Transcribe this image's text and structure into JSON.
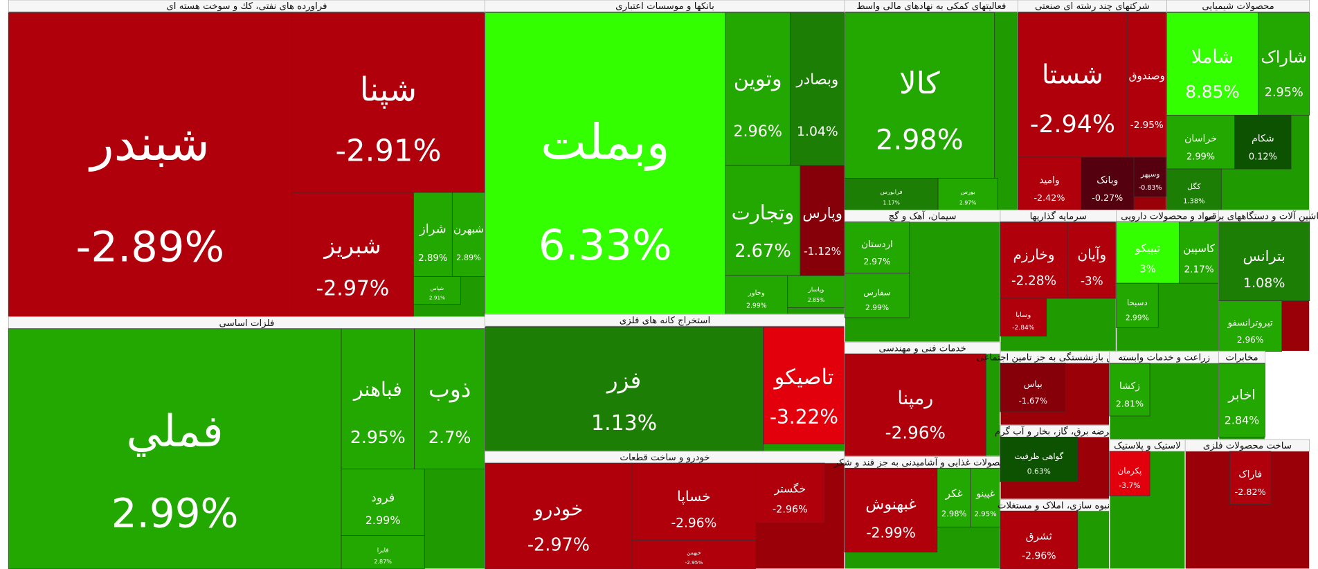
{
  "chart_data": {
    "type": "treemap",
    "groups": [
      {
        "name": "فراورده های نفتی، كك و سوخت هسته ای",
        "labels": [
          "شبندر",
          "شپنا",
          "شبریز",
          "شراز",
          "شبهرن",
          "شپاس"
        ],
        "values": [
          -2.89,
          -2.91,
          -2.97,
          2.89,
          2.89,
          2.91
        ],
        "value_labels": [
          "-2.89%",
          "-2.91%",
          "-2.97%",
          "2.89%",
          "2.89%",
          "2.91%"
        ]
      },
      {
        "name": "بانکها و موسسات اعتباری",
        "labels": [
          "وبملت",
          "وتوين",
          "وبصادر",
          "وتجارت",
          "وپارس",
          "وخاور",
          "وپاسار"
        ],
        "values": [
          6.33,
          2.96,
          1.04,
          2.67,
          -1.12,
          2.99,
          2.85
        ],
        "value_labels": [
          "6.33%",
          "2.96%",
          "1.04%",
          "2.67%",
          "-1.12%",
          "2.99%",
          "2.85%"
        ]
      },
      {
        "name": "فعالیتهای کمکی به نهادهای مالی واسط",
        "labels": [
          "کالا",
          "فرابورس",
          "بورس"
        ],
        "values": [
          2.98,
          1.17,
          2.97
        ],
        "value_labels": [
          "2.98%",
          "1.17%",
          "2.97%"
        ]
      },
      {
        "name": "شرکتهای چند رشته ای صنعتی",
        "labels": [
          "شستا",
          "وصندوق",
          "وامید",
          "وبانک",
          "وسپهر"
        ],
        "values": [
          -2.94,
          -2.95,
          -2.42,
          -0.27,
          -0.83
        ],
        "value_labels": [
          "-2.94%",
          "-2.95%",
          "-2.42%",
          "-0.27%",
          "-0.83%"
        ]
      },
      {
        "name": "محصولات شیمیایی",
        "labels": [
          "شاملا",
          "شاراک",
          "خراسان",
          "شکام",
          "کگل"
        ],
        "values": [
          8.85,
          2.95,
          2.99,
          0.12,
          1.38
        ],
        "value_labels": [
          "8.85%",
          "2.95%",
          "2.99%",
          "0.12%",
          "1.38%"
        ]
      },
      {
        "name": "فلزات اساسی",
        "labels": [
          "فملي",
          "فباهنر",
          "ذوب",
          "فرود",
          "فایرا"
        ],
        "values": [
          2.99,
          2.95,
          2.7,
          2.99,
          2.87
        ],
        "value_labels": [
          "2.99%",
          "2.95%",
          "2.7%",
          "2.99%",
          "2.87%"
        ]
      },
      {
        "name": "استخراج کانه های فلزی",
        "labels": [
          "فزر",
          "تاصیکو"
        ],
        "values": [
          1.13,
          -3.22
        ],
        "value_labels": [
          "1.13%",
          "-3.22%"
        ]
      },
      {
        "name": "خودرو و ساخت قطعات",
        "labels": [
          "خودرو",
          "خساپا",
          "خگستر",
          "خبهمن"
        ],
        "values": [
          -2.97,
          -2.96,
          -2.96,
          -2.95
        ],
        "value_labels": [
          "-2.97%",
          "-2.96%",
          "-2.96%",
          "-2.95%"
        ]
      },
      {
        "name": "سیمان، آهک و گچ",
        "labels": [
          "اردستان",
          "سفارس"
        ],
        "values": [
          2.97,
          2.99
        ],
        "value_labels": [
          "2.97%",
          "2.99%"
        ]
      },
      {
        "name": "سرمایه گذاریها",
        "labels": [
          "وخارزم",
          "وآیان",
          "وسایا"
        ],
        "values": [
          -2.28,
          -3,
          -2.84
        ],
        "value_labels": [
          "-2.28%",
          "-3%",
          "-2.84%"
        ]
      },
      {
        "name": "مواد و محصولات دارویی",
        "labels": [
          "تیپیکو",
          "کاسپین",
          "دسبحا"
        ],
        "values": [
          3,
          2.17,
          2.99
        ],
        "value_labels": [
          "3%",
          "2.17%",
          "2.99%"
        ]
      },
      {
        "name": "ماشین آلات و دستگاههای برقی",
        "labels": [
          "بترانس",
          "تیروترانسفو"
        ],
        "values": [
          1.08,
          2.96
        ],
        "value_labels": [
          "1.08%",
          "2.96%"
        ]
      },
      {
        "name": "خدمات فنی و مهندسی",
        "labels": [
          "رمپنا"
        ],
        "values": [
          -2.96
        ],
        "value_labels": [
          "-2.96%"
        ]
      },
      {
        "name": "محصولات غذایی و آشامیدنی به جز قند و شکر",
        "labels": [
          "غبهنوش",
          "غکر",
          "غپینو"
        ],
        "values": [
          -2.99,
          2.98,
          2.95
        ],
        "value_labels": [
          "-2.99%",
          "2.98%",
          "2.95%"
        ]
      },
      {
        "name": "صندوق بازنشستگی به جز تامین اجتماعی",
        "labels": [
          "بپاس"
        ],
        "values": [
          -1.67
        ],
        "value_labels": [
          "-1.67%"
        ]
      },
      {
        "name": "عرضه برق، گاز، بخار و آب گرم",
        "labels": [
          "گواهی ظرفیت"
        ],
        "values": [
          0.63
        ],
        "value_labels": [
          "0.63%"
        ]
      },
      {
        "name": "انبوه سازی، املاک و مستغلات",
        "labels": [
          "ثشرق"
        ],
        "values": [
          -2.96
        ],
        "value_labels": [
          "-2.96%"
        ]
      },
      {
        "name": "زراعت و خدمات وابسته",
        "labels": [
          "زکشا"
        ],
        "values": [
          2.81
        ],
        "value_labels": [
          "2.81%"
        ]
      },
      {
        "name": "مخابرات",
        "labels": [
          "اخابر"
        ],
        "values": [
          2.84
        ],
        "value_labels": [
          "2.84%"
        ]
      },
      {
        "name": "لاستیک و پلاستیک",
        "labels": [
          "پکرمان"
        ],
        "values": [
          -3.7
        ],
        "value_labels": [
          "-3.7%"
        ]
      },
      {
        "name": "ساخت محصولات فلزی",
        "labels": [
          "فاراک"
        ],
        "values": [
          -2.82
        ],
        "value_labels": [
          "-2.82%"
        ]
      }
    ]
  }
}
